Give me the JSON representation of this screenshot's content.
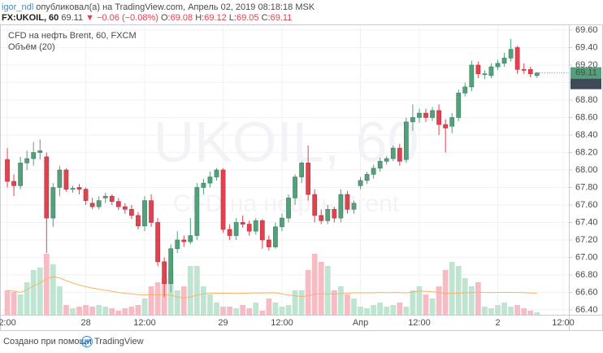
{
  "header": {
    "user": "igor_ndl",
    "published": "опубликовал(а) на TradingView.com, Апрель 02, 2019 08:18:18 MSK",
    "symbol": "FX:UKOIL, 60",
    "change": "▼ −0.06 (−0.08%)",
    "ohlc_keys": [
      "O:",
      "H:",
      "L:",
      "C:"
    ]
  },
  "chart_data": {
    "type": "candlestick",
    "title": "CFD на нефть Brent, 60, FXCM",
    "volume_label": "Объём (20)",
    "watermark": [
      "UKOIL, 60",
      "CFD на нефть Brent"
    ],
    "countdown": "41:44",
    "categories": [
      "2:00",
      null,
      null,
      null,
      null,
      null,
      null,
      null,
      null,
      null,
      null,
      null,
      "28",
      null,
      null,
      null,
      null,
      null,
      null,
      null,
      null,
      "12:00",
      null,
      null,
      null,
      null,
      null,
      null,
      null,
      null,
      null,
      null,
      null,
      "29",
      null,
      null,
      null,
      null,
      null,
      null,
      null,
      null,
      "12:00",
      null,
      null,
      null,
      null,
      null,
      null,
      null,
      null,
      null,
      null,
      null,
      "Апр",
      null,
      null,
      null,
      null,
      null,
      null,
      null,
      null,
      "12:00",
      null,
      null,
      null,
      null,
      null,
      null,
      null,
      null,
      null,
      null,
      null,
      "2",
      null,
      null,
      null,
      null,
      null,
      null,
      null,
      null,
      null,
      "12:00"
    ],
    "open": [
      68.12,
      67.87,
      67.82,
      68.08,
      68.13,
      68.2,
      68.15,
      67.45,
      67.8,
      68.0,
      67.78,
      67.8,
      67.78,
      67.62,
      67.58,
      67.68,
      67.7,
      67.64,
      67.58,
      67.55,
      67.48,
      67.36,
      67.65,
      67.4,
      66.95,
      66.7,
      67.1,
      67.2,
      67.18,
      67.25,
      67.8,
      67.85,
      67.92,
      68.0,
      67.32,
      67.25,
      67.4,
      67.38,
      67.3,
      67.42,
      67.2,
      67.12,
      67.35,
      67.45,
      67.68,
      67.92,
      68.08,
      67.72,
      67.48,
      67.42,
      67.55,
      67.45,
      67.72,
      67.55,
      67.82,
      67.88,
      67.95,
      68.02,
      68.1,
      68.13,
      68.25,
      68.12,
      68.55,
      68.6,
      68.65,
      68.6,
      68.68,
      68.52,
      68.5,
      68.6,
      68.88,
      68.95,
      69.2,
      69.1,
      69.08,
      69.18,
      69.22,
      69.28,
      69.4,
      69.15,
      69.15,
      69.08,
      null,
      null,
      null,
      null
    ],
    "high": [
      68.25,
      67.95,
      68.15,
      68.22,
      68.32,
      68.35,
      68.2,
      67.85,
      68.05,
      68.02,
      67.82,
      67.84,
      67.8,
      67.68,
      67.7,
      67.74,
      67.72,
      67.68,
      67.62,
      67.6,
      67.52,
      67.7,
      67.72,
      67.45,
      67.0,
      67.15,
      67.3,
      67.25,
      67.45,
      67.85,
      67.9,
      67.98,
      68.02,
      68.02,
      67.38,
      67.45,
      67.48,
      67.42,
      67.45,
      67.44,
      67.25,
      67.4,
      67.5,
      67.72,
      67.95,
      68.1,
      68.28,
      67.78,
      67.55,
      67.6,
      67.58,
      67.78,
      67.76,
      67.65,
      67.92,
      67.98,
      68.06,
      68.14,
      68.16,
      68.28,
      68.3,
      68.6,
      68.75,
      68.7,
      68.7,
      68.72,
      68.75,
      68.58,
      68.65,
      68.92,
      69.0,
      69.25,
      69.24,
      69.14,
      69.22,
      69.26,
      69.34,
      69.5,
      69.42,
      69.22,
      69.18,
      69.12,
      null,
      null,
      null,
      null
    ],
    "low": [
      67.8,
      67.7,
      67.78,
      68.0,
      68.05,
      68.12,
      67.05,
      67.35,
      67.7,
      67.75,
      67.74,
      67.72,
      67.6,
      67.55,
      67.55,
      67.62,
      67.6,
      67.54,
      67.5,
      67.44,
      67.32,
      67.3,
      67.35,
      66.9,
      66.55,
      66.6,
      67.05,
      67.12,
      67.15,
      67.2,
      67.72,
      67.8,
      67.88,
      67.28,
      67.2,
      67.2,
      67.34,
      67.25,
      67.26,
      67.1,
      67.08,
      67.1,
      67.3,
      67.4,
      67.6,
      67.85,
      67.65,
      67.4,
      67.38,
      67.38,
      67.4,
      67.4,
      67.5,
      67.5,
      67.78,
      67.84,
      67.9,
      67.98,
      68.06,
      68.1,
      68.05,
      68.08,
      68.45,
      68.54,
      68.55,
      68.56,
      68.4,
      68.2,
      68.42,
      68.56,
      68.84,
      68.9,
      69.05,
      69.04,
      69.05,
      69.14,
      69.18,
      69.24,
      69.1,
      69.1,
      69.06,
      69.05,
      null,
      null,
      null,
      null
    ],
    "close": [
      67.87,
      67.82,
      68.08,
      68.13,
      68.2,
      68.22,
      67.45,
      67.8,
      68.0,
      67.78,
      67.79,
      67.78,
      67.65,
      67.58,
      67.65,
      67.7,
      67.64,
      67.58,
      67.55,
      67.48,
      67.36,
      67.65,
      67.4,
      66.95,
      66.7,
      67.1,
      67.2,
      67.18,
      67.25,
      67.8,
      67.85,
      67.92,
      68.0,
      67.32,
      67.25,
      67.4,
      67.38,
      67.3,
      67.42,
      67.2,
      67.12,
      67.35,
      67.45,
      67.68,
      67.92,
      68.08,
      67.72,
      67.48,
      67.42,
      67.55,
      67.45,
      67.72,
      67.55,
      67.62,
      67.88,
      67.95,
      68.02,
      68.1,
      68.13,
      68.25,
      68.1,
      68.55,
      68.6,
      68.65,
      68.6,
      68.68,
      68.52,
      68.48,
      68.6,
      68.88,
      68.95,
      69.2,
      69.1,
      69.1,
      69.18,
      69.22,
      69.28,
      69.38,
      69.15,
      69.14,
      69.1,
      69.11,
      null,
      null,
      null,
      null
    ],
    "volume": [
      30,
      28,
      25,
      40,
      55,
      58,
      75,
      62,
      35,
      12,
      8,
      10,
      12,
      10,
      12,
      10,
      8,
      5,
      8,
      10,
      12,
      20,
      35,
      40,
      45,
      55,
      30,
      35,
      60,
      60,
      35,
      25,
      15,
      10,
      10,
      8,
      12,
      8,
      15,
      5,
      20,
      15,
      10,
      12,
      30,
      30,
      55,
      75,
      65,
      60,
      30,
      35,
      25,
      20,
      10,
      8,
      12,
      15,
      10,
      12,
      15,
      10,
      30,
      35,
      25,
      20,
      35,
      55,
      65,
      60,
      45,
      35,
      40,
      10,
      8,
      12,
      15,
      10,
      12,
      8,
      5,
      3,
      null,
      null,
      null,
      null
    ],
    "up_color": "#53a07b",
    "down_color": "#e0424f",
    "up_volume_color": "#bfe5d2",
    "down_volume_color": "#f7bcc3",
    "ma_color": "#f6b26b",
    "ylim": [
      66.344,
      69.665
    ],
    "yticks": [
      {
        "value": 69.6,
        "label": "69.60"
      },
      {
        "value": 69.4,
        "label": "69.40"
      },
      {
        "value": 69.2,
        "label": "69.20"
      },
      {
        "value": 69.0,
        "label": "69.00"
      },
      {
        "value": 68.8,
        "label": "68.80"
      },
      {
        "value": 68.6,
        "label": "68.60"
      },
      {
        "value": 68.4,
        "label": "68.40"
      },
      {
        "value": 68.2,
        "label": "68.20"
      },
      {
        "value": 68.0,
        "label": "68.00"
      },
      {
        "value": 67.8,
        "label": "67.80"
      },
      {
        "value": 67.6,
        "label": "67.60"
      },
      {
        "value": 67.4,
        "label": "67.40"
      },
      {
        "value": 67.2,
        "label": "67.20"
      },
      {
        "value": 67.0,
        "label": "67.00"
      },
      {
        "value": 66.8,
        "label": "66.80"
      },
      {
        "value": 66.6,
        "label": "66.60"
      },
      {
        "value": 66.4,
        "label": "66.40"
      }
    ],
    "grid": true
  },
  "footer": {
    "text": "Создано при помощи",
    "brand": "TradingView"
  }
}
